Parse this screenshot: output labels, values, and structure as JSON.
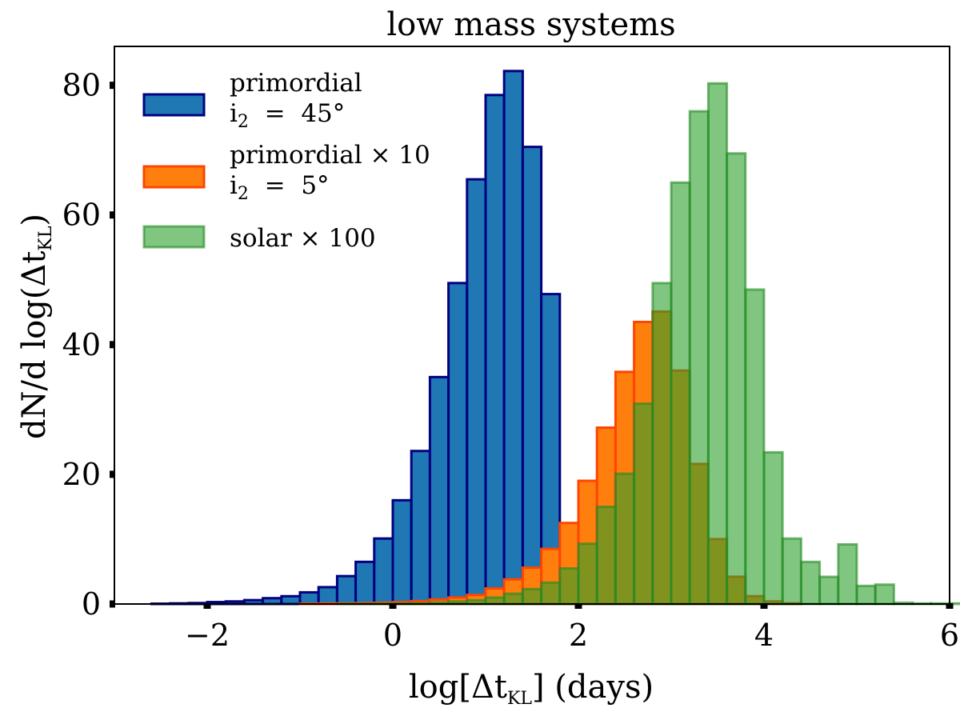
{
  "chart_data": {
    "type": "histogram",
    "title": "low mass systems",
    "xlabel": {
      "main": "log[Δt",
      "sub": "KL",
      "tail": "] (days)"
    },
    "ylabel": {
      "main": "dN/d log(Δt",
      "sub": "KL",
      "tail": ")"
    },
    "xlim": [
      -3.0,
      6.0
    ],
    "ylim": [
      0,
      86
    ],
    "x_ticks": [
      -2,
      0,
      2,
      4,
      6
    ],
    "x_tick_labels": [
      "−2",
      "0",
      "2",
      "4",
      "6"
    ],
    "y_ticks": [
      0,
      20,
      40,
      60,
      80
    ],
    "y_tick_labels": [
      "0",
      "20",
      "40",
      "60",
      "80"
    ],
    "legend_position": "top-left",
    "series": [
      {
        "name": "primordial",
        "legend_lines": [
          "primordial",
          "i2 = 45°"
        ],
        "legend": {
          "line1": "primordial",
          "line2_pre": "i",
          "line2_sub": "2",
          "line2_post": " = 45°"
        },
        "fill": "#1f77b4",
        "edge": "#000080",
        "alpha": 1.0,
        "bin_start": -2.6,
        "bin_width": 0.2,
        "values": [
          0.05,
          0.1,
          0.15,
          0.3,
          0.4,
          0.6,
          0.9,
          1.2,
          1.8,
          2.6,
          4.3,
          6.5,
          10.1,
          16,
          23.6,
          35,
          49.5,
          65.5,
          78.5,
          82.2,
          70.5,
          47.8
        ]
      },
      {
        "name": "primordial × 10",
        "legend_lines": [
          "primordial × 10",
          "i2 = 5°"
        ],
        "legend": {
          "line1": "primordial × 10",
          "line2_pre": "i",
          "line2_sub": "2",
          "line2_post": " = 5°"
        },
        "fill": "#ff7f0e",
        "edge": "#ff4500",
        "alpha": 1.0,
        "bin_start": -1.0,
        "bin_width": 0.2,
        "values": [
          0.05,
          0.08,
          0.1,
          0.15,
          0.2,
          0.3,
          0.45,
          0.7,
          1.0,
          1.4,
          2.4,
          3.8,
          5.6,
          8.5,
          12.5,
          19,
          27.2,
          35.8,
          43.5,
          45.1,
          36,
          21.6,
          10,
          4.2,
          1.2,
          0.4,
          0.1
        ]
      },
      {
        "name": "solar × 100",
        "legend_lines": [
          "solar × 100"
        ],
        "legend": {
          "line1": "solar × 100",
          "line2_pre": "",
          "line2_sub": "",
          "line2_post": ""
        },
        "fill": "#2ca02c",
        "edge": "#228b22",
        "alpha": 0.6,
        "bin_start": -0.6,
        "bin_width": 0.2,
        "values": [
          0.02,
          0.04,
          0.06,
          0.1,
          0.15,
          0.25,
          0.4,
          0.6,
          1.0,
          1.6,
          2.3,
          3.3,
          5.5,
          9.3,
          15,
          20.1,
          30.9,
          49.5,
          65,
          76,
          80.3,
          69.5,
          48.5,
          23.4,
          10.1,
          6.5,
          4.2,
          9.2,
          2.8,
          3.0,
          0.2,
          0.1,
          0.1,
          0.1,
          0.1
        ]
      }
    ]
  }
}
